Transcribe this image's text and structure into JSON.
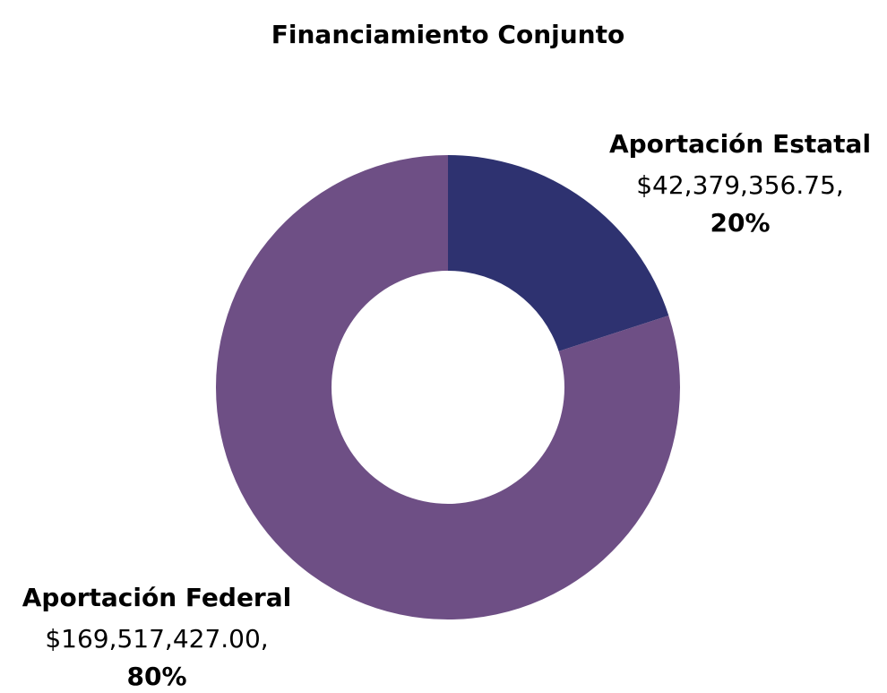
{
  "chart_data": {
    "type": "donut",
    "title": "Financiamiento Conjunto",
    "categories": [
      "Aportación Estatal",
      "Aportación Federal"
    ],
    "values": [
      42379356.75,
      169517427.0
    ],
    "value_labels": [
      "$42,379,356.75,",
      "$169,517,427.00,"
    ],
    "percents": [
      20,
      80
    ],
    "percent_labels": [
      "20%",
      "80%"
    ],
    "colors": [
      "#2e3270",
      "#6e4f85"
    ]
  }
}
